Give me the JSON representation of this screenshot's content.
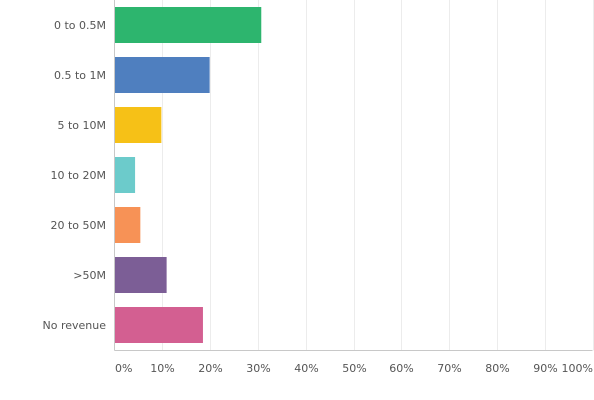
{
  "chart_data": {
    "type": "bar",
    "orientation": "horizontal",
    "categories": [
      "0 to 0.5M",
      "0.5 to 1M",
      "5 to 10M",
      "10 to 20M",
      "20 to 50M",
      ">50M",
      "No revenue"
    ],
    "values": [
      30.6,
      19.8,
      9.7,
      4.2,
      5.3,
      10.8,
      18.4
    ],
    "colors": [
      "#2db56e",
      "#4f7fbf",
      "#f6c117",
      "#6ccbcb",
      "#f79256",
      "#7c5e96",
      "#d35f91"
    ],
    "xlim": [
      0,
      100
    ],
    "x_ticks": [
      "0%",
      "10%",
      "20%",
      "30%",
      "40%",
      "50%",
      "60%",
      "70%",
      "80%",
      "90%",
      "100%"
    ],
    "grid": true
  }
}
